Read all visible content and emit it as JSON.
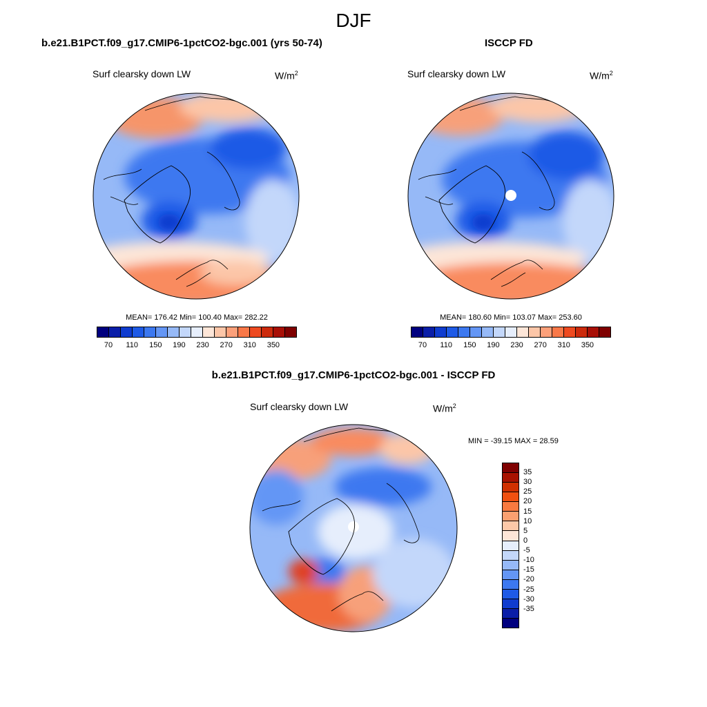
{
  "figure": {
    "title": "DJF"
  },
  "panels": [
    {
      "title": "b.e21.B1PCT.f09_g17.CMIP6-1pctCO2-bgc.001 (yrs 50-74)",
      "variable": "Surf clearsky down LW",
      "units_base": "W/m",
      "units_exp": "2",
      "stats": "MEAN= 176.42  Min= 100.40  Max= 282.22"
    },
    {
      "title": "ISCCP FD",
      "variable": "Surf clearsky down LW",
      "units_base": "W/m",
      "units_exp": "2",
      "stats": "MEAN= 180.60  Min= 103.07  Max= 253.60"
    },
    {
      "title": "b.e21.B1PCT.f09_g17.CMIP6-1pctCO2-bgc.001 - ISCCP FD",
      "variable": "Surf clearsky down LW",
      "units_base": "W/m",
      "units_exp": "2",
      "stats": "MIN = -39.15 MAX =  28.59"
    }
  ],
  "colorbar_main": {
    "colors": [
      "#00007f",
      "#0a1ea8",
      "#0f3ccf",
      "#1e5ae6",
      "#3c78f0",
      "#6496f5",
      "#96b9f7",
      "#c3d7fa",
      "#e6eefc",
      "#fde6d8",
      "#fcc6a8",
      "#fca07a",
      "#f97848",
      "#ee4a20",
      "#cc2a0c",
      "#a80f06",
      "#7f0000"
    ],
    "tick_labels": [
      "70",
      "110",
      "150",
      "190",
      "230",
      "270",
      "310",
      "350"
    ]
  },
  "colorbar_diff": {
    "colors": [
      "#7f0000",
      "#a81200",
      "#d03000",
      "#f05010",
      "#f87a40",
      "#faa070",
      "#fcc8a8",
      "#fde6d8",
      "#e6eefc",
      "#c3d7fa",
      "#96b9f7",
      "#6496f5",
      "#3c78f0",
      "#1e5ae6",
      "#0f3ccf",
      "#0a1ea8",
      "#00007f"
    ],
    "tick_labels": [
      "35",
      "30",
      "25",
      "20",
      "15",
      "10",
      "5",
      "0",
      "-5",
      "-10",
      "-15",
      "-20",
      "-25",
      "-30",
      "-35"
    ]
  }
}
